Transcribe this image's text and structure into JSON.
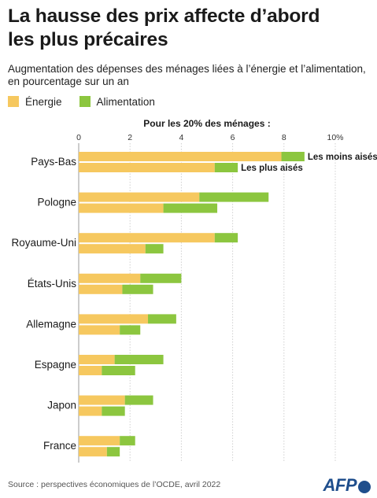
{
  "title_lines": [
    "La hausse des prix affecte d’abord",
    "les plus précaires"
  ],
  "subtitle_lines": [
    "Augmentation des dépenses des ménages liées à l’énergie et l’alimentation,",
    "en pourcentage sur un an"
  ],
  "legend": [
    {
      "label": "Énergie",
      "color": "#f6c85f"
    },
    {
      "label": "Alimentation",
      "color": "#8cc63f"
    }
  ],
  "group_title": "Pour les 20% des ménages :",
  "source": "Source : perspectives économiques de l’OCDE, avril 2022",
  "logo": "AFP",
  "chart_data": {
    "type": "bar",
    "orientation": "horizontal",
    "stacked": true,
    "title": "La hausse des prix affecte d’abord les plus précaires",
    "xlim": [
      0,
      10
    ],
    "xticks": [
      "0",
      "2",
      "4",
      "6",
      "8",
      "10%"
    ],
    "grid": true,
    "categories": [
      "Pays-Bas",
      "Pologne",
      "Royaume-Uni",
      "États-Unis",
      "Allemagne",
      "Espagne",
      "Japon",
      "France"
    ],
    "groups": [
      "Les moins aisés",
      "Les plus aisés"
    ],
    "series": [
      {
        "name": "Énergie",
        "color": "#f6c85f",
        "values_moins_aises": [
          7.9,
          4.7,
          5.3,
          2.4,
          2.7,
          1.4,
          1.8,
          1.6
        ],
        "values_plus_aises": [
          5.3,
          3.3,
          2.6,
          1.7,
          1.6,
          0.9,
          0.9,
          1.1
        ]
      },
      {
        "name": "Alimentation",
        "color": "#8cc63f",
        "values_moins_aises": [
          0.9,
          2.7,
          0.9,
          1.6,
          1.1,
          1.9,
          1.1,
          0.6
        ],
        "values_plus_aises": [
          0.9,
          2.1,
          0.7,
          1.2,
          0.8,
          1.3,
          0.9,
          0.5
        ]
      }
    ],
    "annotations": [
      "Les moins aisés",
      "Les plus aisés"
    ]
  }
}
